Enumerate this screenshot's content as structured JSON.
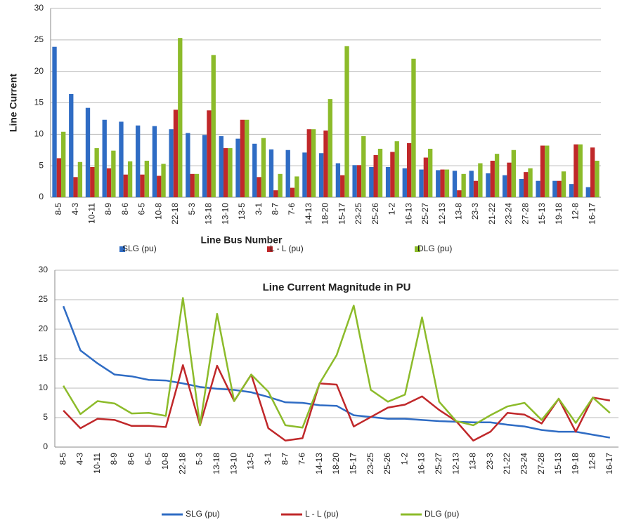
{
  "chart_data": [
    {
      "type": "bar",
      "y_label": "Line Current",
      "x_label": "Line Bus Number",
      "categories": [
        "8-5",
        "4-3",
        "10-11",
        "8-9",
        "8-6",
        "6-5",
        "10-8",
        "22-18",
        "5-3",
        "13-18",
        "13-10",
        "13-5",
        "3-1",
        "8-7",
        "7-6",
        "14-13",
        "18-20",
        "15-17",
        "23-25",
        "25-26",
        "1-2",
        "16-13",
        "25-27",
        "12-13",
        "13-8",
        "23-3",
        "21-22",
        "23-24",
        "27-28",
        "15-13",
        "19-18",
        "12-8",
        "16-17"
      ],
      "series": [
        {
          "name": "SLG (pu)",
          "color": "#2f6cc4",
          "values": [
            23.9,
            16.4,
            14.2,
            12.3,
            12.0,
            11.4,
            11.3,
            10.8,
            10.2,
            9.9,
            9.7,
            9.3,
            8.5,
            7.6,
            7.5,
            7.1,
            7.0,
            5.4,
            5.1,
            4.8,
            4.8,
            4.6,
            4.4,
            4.3,
            4.2,
            4.2,
            3.8,
            3.5,
            2.9,
            2.6,
            2.6,
            2.1,
            1.6
          ]
        },
        {
          "name": "L - L (pu)",
          "color": "#c0282a",
          "values": [
            6.2,
            3.2,
            4.8,
            4.6,
            3.6,
            3.6,
            3.4,
            13.9,
            3.7,
            13.8,
            7.8,
            12.3,
            3.2,
            1.1,
            1.5,
            10.8,
            10.6,
            3.5,
            5.1,
            6.7,
            7.2,
            8.6,
            6.3,
            4.4,
            1.1,
            2.6,
            5.8,
            5.5,
            4.0,
            8.2,
            2.6,
            8.4,
            7.9
          ]
        },
        {
          "name": "DLG (pu)",
          "color": "#8cbb2a",
          "values": [
            10.4,
            5.6,
            7.8,
            7.4,
            5.7,
            5.8,
            5.3,
            25.3,
            3.7,
            22.6,
            7.8,
            12.3,
            9.4,
            3.7,
            3.3,
            10.8,
            15.6,
            24.0,
            9.7,
            7.7,
            8.9,
            22.0,
            7.7,
            4.4,
            3.7,
            5.4,
            6.9,
            7.5,
            4.6,
            8.2,
            4.1,
            8.4,
            5.8
          ]
        }
      ],
      "ylim": [
        0,
        30
      ],
      "yticks": [
        0,
        5,
        10,
        15,
        20,
        25,
        30
      ],
      "grid": true
    },
    {
      "type": "line",
      "title": "Line Current Magnitude in PU",
      "categories": [
        "8-5",
        "4-3",
        "10-11",
        "8-9",
        "8-6",
        "6-5",
        "10-8",
        "22-18",
        "5-3",
        "13-18",
        "13-10",
        "13-5",
        "3-1",
        "8-7",
        "7-6",
        "14-13",
        "18-20",
        "15-17",
        "23-25",
        "25-26",
        "1-2",
        "16-13",
        "25-27",
        "12-13",
        "13-8",
        "23-3",
        "21-22",
        "23-24",
        "27-28",
        "15-13",
        "19-18",
        "12-8",
        "16-17"
      ],
      "series": [
        {
          "name": "SLG (pu)",
          "color": "#2f6cc4",
          "values": [
            23.9,
            16.4,
            14.2,
            12.3,
            12.0,
            11.4,
            11.3,
            10.8,
            10.2,
            9.9,
            9.7,
            9.3,
            8.5,
            7.6,
            7.5,
            7.1,
            7.0,
            5.4,
            5.1,
            4.8,
            4.8,
            4.6,
            4.4,
            4.3,
            4.2,
            4.2,
            3.8,
            3.5,
            2.9,
            2.6,
            2.6,
            2.1,
            1.6
          ]
        },
        {
          "name": "L - L (pu)",
          "color": "#c0282a",
          "values": [
            6.2,
            3.2,
            4.8,
            4.6,
            3.6,
            3.6,
            3.4,
            13.9,
            3.7,
            13.8,
            7.8,
            12.3,
            3.2,
            1.1,
            1.5,
            10.8,
            10.6,
            3.5,
            5.1,
            6.7,
            7.2,
            8.6,
            6.3,
            4.4,
            1.1,
            2.6,
            5.8,
            5.5,
            4.0,
            8.2,
            2.6,
            8.4,
            7.9
          ]
        },
        {
          "name": "DLG (pu)",
          "color": "#8cbb2a",
          "values": [
            10.4,
            5.6,
            7.8,
            7.4,
            5.7,
            5.8,
            5.3,
            25.3,
            3.7,
            22.6,
            7.8,
            12.3,
            9.4,
            3.7,
            3.3,
            10.8,
            15.6,
            24.0,
            9.7,
            7.7,
            8.9,
            22.0,
            7.7,
            4.4,
            3.7,
            5.4,
            6.9,
            7.5,
            4.6,
            8.2,
            4.1,
            8.4,
            5.8
          ]
        }
      ],
      "ylim": [
        0,
        30
      ],
      "yticks": [
        0,
        5,
        10,
        15,
        20,
        25,
        30
      ],
      "grid": true
    }
  ]
}
